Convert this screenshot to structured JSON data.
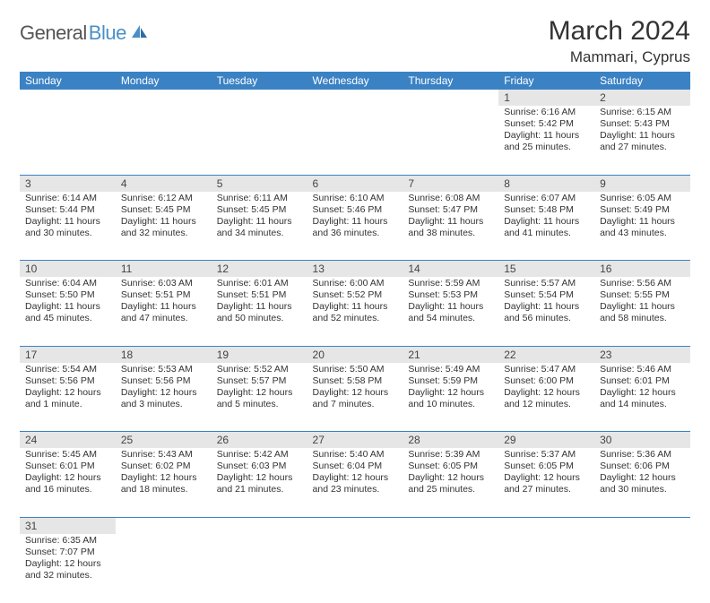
{
  "logo": {
    "part1": "General",
    "part2": "Blue"
  },
  "title": "March 2024",
  "location": "Mammari, Cyprus",
  "colors": {
    "header_bg": "#3b82c4",
    "header_text": "#ffffff",
    "daynum_bg": "#e6e6e6",
    "border": "#3b82c4",
    "logo_gray": "#555555",
    "logo_blue": "#4a8fc9",
    "text": "#333333"
  },
  "weekdays": [
    "Sunday",
    "Monday",
    "Tuesday",
    "Wednesday",
    "Thursday",
    "Friday",
    "Saturday"
  ],
  "weeks": [
    [
      null,
      null,
      null,
      null,
      null,
      {
        "n": "1",
        "sr": "6:16 AM",
        "ss": "5:42 PM",
        "dl": "11 hours and 25 minutes."
      },
      {
        "n": "2",
        "sr": "6:15 AM",
        "ss": "5:43 PM",
        "dl": "11 hours and 27 minutes."
      }
    ],
    [
      {
        "n": "3",
        "sr": "6:14 AM",
        "ss": "5:44 PM",
        "dl": "11 hours and 30 minutes."
      },
      {
        "n": "4",
        "sr": "6:12 AM",
        "ss": "5:45 PM",
        "dl": "11 hours and 32 minutes."
      },
      {
        "n": "5",
        "sr": "6:11 AM",
        "ss": "5:45 PM",
        "dl": "11 hours and 34 minutes."
      },
      {
        "n": "6",
        "sr": "6:10 AM",
        "ss": "5:46 PM",
        "dl": "11 hours and 36 minutes."
      },
      {
        "n": "7",
        "sr": "6:08 AM",
        "ss": "5:47 PM",
        "dl": "11 hours and 38 minutes."
      },
      {
        "n": "8",
        "sr": "6:07 AM",
        "ss": "5:48 PM",
        "dl": "11 hours and 41 minutes."
      },
      {
        "n": "9",
        "sr": "6:05 AM",
        "ss": "5:49 PM",
        "dl": "11 hours and 43 minutes."
      }
    ],
    [
      {
        "n": "10",
        "sr": "6:04 AM",
        "ss": "5:50 PM",
        "dl": "11 hours and 45 minutes."
      },
      {
        "n": "11",
        "sr": "6:03 AM",
        "ss": "5:51 PM",
        "dl": "11 hours and 47 minutes."
      },
      {
        "n": "12",
        "sr": "6:01 AM",
        "ss": "5:51 PM",
        "dl": "11 hours and 50 minutes."
      },
      {
        "n": "13",
        "sr": "6:00 AM",
        "ss": "5:52 PM",
        "dl": "11 hours and 52 minutes."
      },
      {
        "n": "14",
        "sr": "5:59 AM",
        "ss": "5:53 PM",
        "dl": "11 hours and 54 minutes."
      },
      {
        "n": "15",
        "sr": "5:57 AM",
        "ss": "5:54 PM",
        "dl": "11 hours and 56 minutes."
      },
      {
        "n": "16",
        "sr": "5:56 AM",
        "ss": "5:55 PM",
        "dl": "11 hours and 58 minutes."
      }
    ],
    [
      {
        "n": "17",
        "sr": "5:54 AM",
        "ss": "5:56 PM",
        "dl": "12 hours and 1 minute."
      },
      {
        "n": "18",
        "sr": "5:53 AM",
        "ss": "5:56 PM",
        "dl": "12 hours and 3 minutes."
      },
      {
        "n": "19",
        "sr": "5:52 AM",
        "ss": "5:57 PM",
        "dl": "12 hours and 5 minutes."
      },
      {
        "n": "20",
        "sr": "5:50 AM",
        "ss": "5:58 PM",
        "dl": "12 hours and 7 minutes."
      },
      {
        "n": "21",
        "sr": "5:49 AM",
        "ss": "5:59 PM",
        "dl": "12 hours and 10 minutes."
      },
      {
        "n": "22",
        "sr": "5:47 AM",
        "ss": "6:00 PM",
        "dl": "12 hours and 12 minutes."
      },
      {
        "n": "23",
        "sr": "5:46 AM",
        "ss": "6:01 PM",
        "dl": "12 hours and 14 minutes."
      }
    ],
    [
      {
        "n": "24",
        "sr": "5:45 AM",
        "ss": "6:01 PM",
        "dl": "12 hours and 16 minutes."
      },
      {
        "n": "25",
        "sr": "5:43 AM",
        "ss": "6:02 PM",
        "dl": "12 hours and 18 minutes."
      },
      {
        "n": "26",
        "sr": "5:42 AM",
        "ss": "6:03 PM",
        "dl": "12 hours and 21 minutes."
      },
      {
        "n": "27",
        "sr": "5:40 AM",
        "ss": "6:04 PM",
        "dl": "12 hours and 23 minutes."
      },
      {
        "n": "28",
        "sr": "5:39 AM",
        "ss": "6:05 PM",
        "dl": "12 hours and 25 minutes."
      },
      {
        "n": "29",
        "sr": "5:37 AM",
        "ss": "6:05 PM",
        "dl": "12 hours and 27 minutes."
      },
      {
        "n": "30",
        "sr": "5:36 AM",
        "ss": "6:06 PM",
        "dl": "12 hours and 30 minutes."
      }
    ],
    [
      {
        "n": "31",
        "sr": "6:35 AM",
        "ss": "7:07 PM",
        "dl": "12 hours and 32 minutes."
      },
      null,
      null,
      null,
      null,
      null,
      null
    ]
  ],
  "labels": {
    "sunrise": "Sunrise: ",
    "sunset": "Sunset: ",
    "daylight": "Daylight: "
  }
}
